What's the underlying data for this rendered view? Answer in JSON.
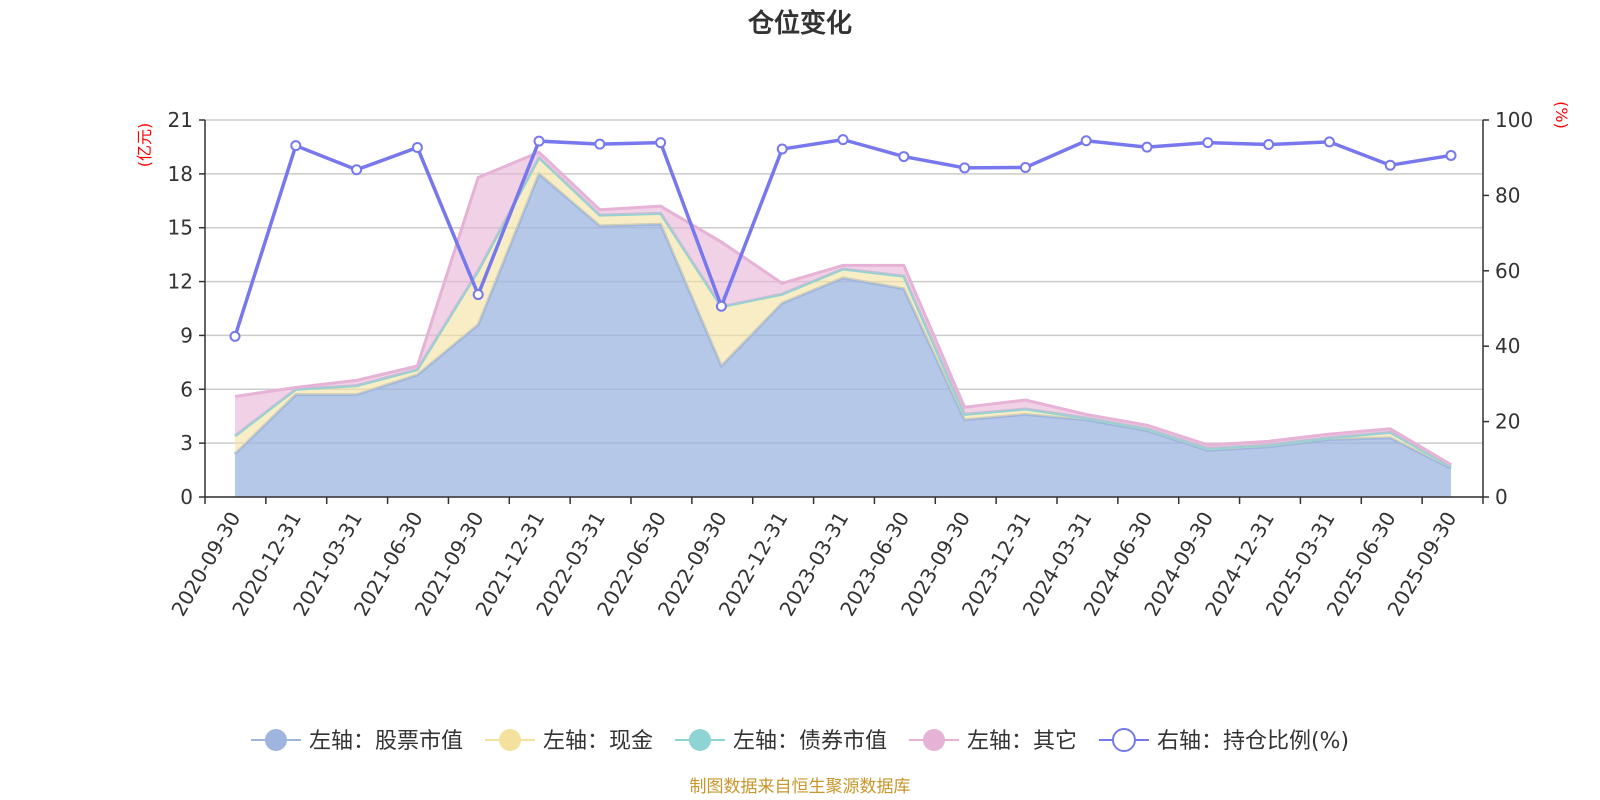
{
  "chart_data": {
    "type": "area",
    "title": "仓位变化",
    "y_left_unit": "(亿元)",
    "y_right_unit": "(%)",
    "y_left_range": [
      0,
      21
    ],
    "y_left_ticks": [
      "0",
      "3",
      "6",
      "9",
      "12",
      "15",
      "18",
      "21"
    ],
    "y_right_range": [
      0,
      100
    ],
    "y_right_ticks": [
      "0",
      "20",
      "40",
      "60",
      "80",
      "100"
    ],
    "grid": true,
    "legend_position": "bottom",
    "categories": [
      "2020-09-30",
      "2020-12-31",
      "2021-03-31",
      "2021-06-30",
      "2021-09-30",
      "2021-12-31",
      "2022-03-31",
      "2022-06-30",
      "2022-09-30",
      "2022-12-31",
      "2023-03-31",
      "2023-06-30",
      "2023-09-30",
      "2023-12-31",
      "2024-03-31",
      "2024-06-30",
      "2024-09-30",
      "2024-12-31",
      "2025-03-31",
      "2025-06-30",
      "2025-09-30"
    ],
    "stacked_series": [
      {
        "name": "左轴：股票市值",
        "color": "#9db5df",
        "values": [
          2.4,
          5.7,
          5.7,
          6.8,
          9.6,
          18.0,
          15.1,
          15.2,
          7.3,
          10.8,
          12.2,
          11.6,
          4.3,
          4.6,
          4.3,
          3.7,
          2.6,
          2.8,
          3.2,
          3.3,
          1.6
        ]
      },
      {
        "name": "左轴：现金",
        "color": "#f5e19e",
        "values": [
          1.0,
          0.3,
          0.5,
          0.3,
          3.0,
          0.9,
          0.6,
          0.6,
          3.3,
          0.5,
          0.5,
          0.7,
          0.3,
          0.3,
          0.1,
          0.1,
          0.1,
          0.1,
          0.1,
          0.3,
          0.1
        ]
      },
      {
        "name": "左轴：债券市值",
        "color": "#8fd4d4",
        "values": [
          0,
          0,
          0,
          0,
          0,
          0,
          0,
          0,
          0,
          0,
          0,
          0,
          0,
          0,
          0,
          0,
          0,
          0,
          0,
          0,
          0
        ]
      },
      {
        "name": "左轴：其它",
        "color": "#e6b2d6",
        "values": [
          2.2,
          0.1,
          0.3,
          0.2,
          5.2,
          0.3,
          0.3,
          0.4,
          3.6,
          0.6,
          0.2,
          0.6,
          0.4,
          0.5,
          0.2,
          0.2,
          0.2,
          0.2,
          0.2,
          0.2,
          0.1
        ]
      }
    ],
    "line_series": {
      "name": "右轴：持仓比例(%)",
      "color": "#7777ee",
      "values": [
        42.6,
        93.2,
        86.8,
        92.7,
        53.7,
        94.4,
        93.6,
        94.0,
        50.6,
        92.3,
        94.8,
        90.3,
        87.3,
        87.4,
        94.5,
        92.8,
        94.0,
        93.5,
        94.2,
        88.0,
        90.6
      ]
    }
  },
  "credit": "制图数据来自恒生聚源数据库"
}
